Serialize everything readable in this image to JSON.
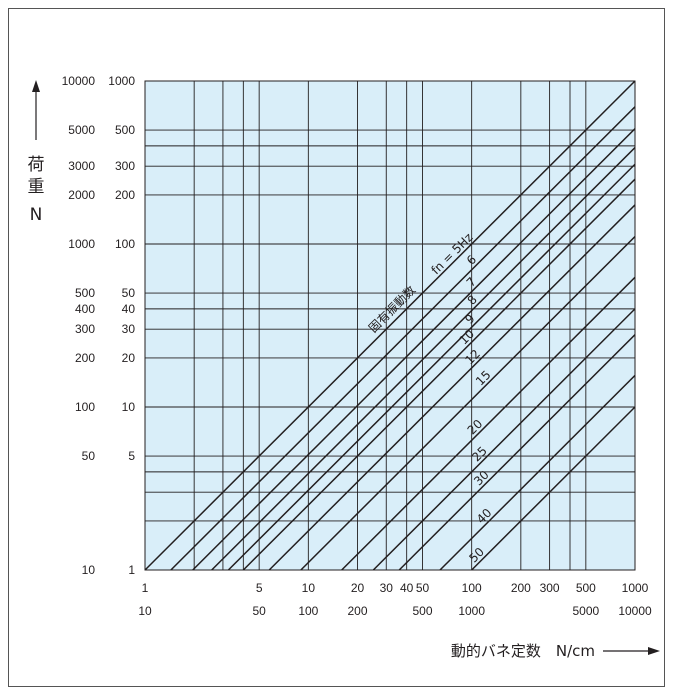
{
  "chart_data": {
    "type": "line",
    "title": "",
    "plot_background": "#d9eef9",
    "line_color": "#231f20",
    "x_axis": {
      "scale": "log",
      "range": [
        1,
        1000
      ],
      "label": "動的バネ定数　N/cm",
      "tick_labels_row1": [
        {
          "value": 1,
          "label": "1"
        },
        {
          "value": 5,
          "label": "5"
        },
        {
          "value": 10,
          "label": "10"
        },
        {
          "value": 20,
          "label": "20"
        },
        {
          "value": 30,
          "label": "30"
        },
        {
          "value": 40,
          "label": "40"
        },
        {
          "value": 50,
          "label": "50"
        },
        {
          "value": 100,
          "label": "100"
        },
        {
          "value": 200,
          "label": "200"
        },
        {
          "value": 300,
          "label": "300"
        },
        {
          "value": 500,
          "label": "500"
        },
        {
          "value": 1000,
          "label": "1000"
        }
      ],
      "tick_labels_row2": [
        {
          "value": 1,
          "label": "10"
        },
        {
          "value": 5,
          "label": "50"
        },
        {
          "value": 10,
          "label": "100"
        },
        {
          "value": 20,
          "label": "200"
        },
        {
          "value": 50,
          "label": "500"
        },
        {
          "value": 100,
          "label": "1000"
        },
        {
          "value": 500,
          "label": "5000"
        },
        {
          "value": 1000,
          "label": "10000"
        }
      ],
      "gridlines": [
        2,
        3,
        4,
        5,
        10,
        20,
        30,
        40,
        50,
        100,
        200,
        300,
        400,
        500
      ]
    },
    "y_axis": {
      "scale": "log",
      "range": [
        1,
        1000
      ],
      "label_chars": [
        "荷",
        "重",
        "N"
      ],
      "tick_labels_inner": [
        {
          "value": 1,
          "label": "1"
        },
        {
          "value": 5,
          "label": "5"
        },
        {
          "value": 10,
          "label": "10"
        },
        {
          "value": 20,
          "label": "20"
        },
        {
          "value": 30,
          "label": "30"
        },
        {
          "value": 40,
          "label": "40"
        },
        {
          "value": 50,
          "label": "50"
        },
        {
          "value": 100,
          "label": "100"
        },
        {
          "value": 200,
          "label": "200"
        },
        {
          "value": 300,
          "label": "300"
        },
        {
          "value": 500,
          "label": "500"
        },
        {
          "value": 1000,
          "label": "1000"
        }
      ],
      "tick_labels_outer": [
        {
          "value": 1,
          "label": "10"
        },
        {
          "value": 5,
          "label": "50"
        },
        {
          "value": 10,
          "label": "100"
        },
        {
          "value": 20,
          "label": "200"
        },
        {
          "value": 30,
          "label": "300"
        },
        {
          "value": 40,
          "label": "400"
        },
        {
          "value": 50,
          "label": "500"
        },
        {
          "value": 100,
          "label": "1000"
        },
        {
          "value": 200,
          "label": "2000"
        },
        {
          "value": 300,
          "label": "3000"
        },
        {
          "value": 500,
          "label": "5000"
        },
        {
          "value": 1000,
          "label": "10000"
        }
      ],
      "gridlines": [
        2,
        3,
        4,
        5,
        10,
        20,
        30,
        40,
        50,
        100,
        200,
        300,
        400,
        500
      ]
    },
    "series_group_label": "固有振動数",
    "series": [
      {
        "fn": 5,
        "label": "fn = 5Hz",
        "x_at_y1": 1.0
      },
      {
        "fn": 6,
        "label": "6",
        "x_at_y1": 1.44
      },
      {
        "fn": 7,
        "label": "7",
        "x_at_y1": 1.96
      },
      {
        "fn": 8,
        "label": "8",
        "x_at_y1": 2.56
      },
      {
        "fn": 9,
        "label": "9",
        "x_at_y1": 3.24
      },
      {
        "fn": 10,
        "label": "10",
        "x_at_y1": 4.0
      },
      {
        "fn": 12,
        "label": "12",
        "x_at_y1": 5.76
      },
      {
        "fn": 15,
        "label": "15",
        "x_at_y1": 9.0
      },
      {
        "fn": 20,
        "label": "20",
        "x_at_y1": 16.0
      },
      {
        "fn": 25,
        "label": "25",
        "x_at_y1": 25.0
      },
      {
        "fn": 30,
        "label": "30",
        "x_at_y1": 36.0
      },
      {
        "fn": 40,
        "label": "40",
        "x_at_y1": 64.0
      },
      {
        "fn": 50,
        "label": "50",
        "x_at_y1": 100.0
      }
    ]
  }
}
